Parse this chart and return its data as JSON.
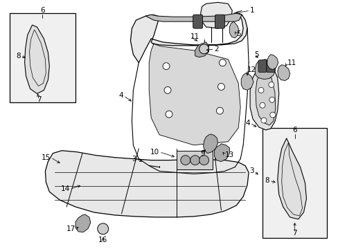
{
  "bg": "#ffffff",
  "lc": "#000000",
  "fig_w": 4.89,
  "fig_h": 3.6,
  "dpi": 100
}
